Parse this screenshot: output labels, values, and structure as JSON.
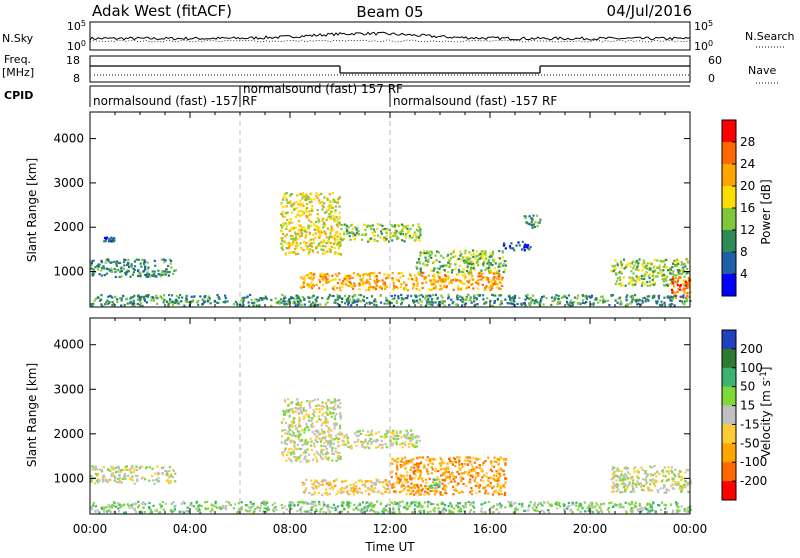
{
  "header": {
    "site": "Adak West (fitACF)",
    "beam": "Beam 05",
    "date": "04/Jul/2016"
  },
  "status_panel": {
    "left_labels": {
      "nsky": "N.Sky",
      "freq": "Freq.",
      "freq_unit": "[MHz]",
      "cpid": "CPID"
    },
    "right_labels": {
      "nsearch": "N.Search",
      "nave": "Nave"
    },
    "noise_ticks": [
      "10^5",
      "10^0"
    ],
    "noise_ticks_right": [
      "10^5",
      "10^0"
    ],
    "freq_ticks": [
      "18",
      "8"
    ],
    "nave_ticks": [
      "60",
      "0"
    ],
    "frequency_steps": [
      {
        "start_hour": 0,
        "end_hour": 10,
        "level": "high"
      },
      {
        "start_hour": 10,
        "end_hour": 18,
        "level": "low"
      },
      {
        "start_hour": 18,
        "end_hour": 24,
        "level": "high"
      }
    ],
    "cpid_segments": [
      {
        "label": "normalsound (fast) -157 RF",
        "start_hour": 0
      },
      {
        "label": "normalsound (fast) 157 RF",
        "start_hour": 6
      },
      {
        "label": "normalsound (fast) -157 RF",
        "start_hour": 12
      }
    ]
  },
  "chart_data": [
    {
      "type": "heatmap",
      "panel": "power",
      "ylabel": "Slant Range [km]",
      "ylim": [
        200,
        4600
      ],
      "yticks": [
        1000,
        2000,
        3000,
        4000
      ],
      "xlim": [
        0,
        24
      ],
      "colorbar": {
        "label": "Power [dB]",
        "ticks": [
          "28",
          "24",
          "20",
          "16",
          "12",
          "8",
          "4"
        ],
        "colors": [
          "#ff0000",
          "#ff6a00",
          "#ffa500",
          "#ffdd00",
          "#7fc83a",
          "#2e8b57",
          "#1f5faa",
          "#0000ff"
        ]
      },
      "echo_regions": [
        {
          "x0": 0.0,
          "x1": 3.4,
          "y0": 900,
          "y1": 1300,
          "level": 2
        },
        {
          "x0": 0.5,
          "x1": 1.0,
          "y0": 1700,
          "y1": 1800,
          "level": 1
        },
        {
          "x0": 7.6,
          "x1": 10.0,
          "y0": 1400,
          "y1": 2800,
          "level": 4
        },
        {
          "x0": 10.0,
          "x1": 13.2,
          "y0": 1700,
          "y1": 2100,
          "level": 3
        },
        {
          "x0": 8.4,
          "x1": 16.5,
          "y0": 600,
          "y1": 1000,
          "level": 5
        },
        {
          "x0": 13.0,
          "x1": 16.6,
          "y0": 1000,
          "y1": 1500,
          "level": 3
        },
        {
          "x0": 16.5,
          "x1": 17.6,
          "y0": 1500,
          "y1": 1700,
          "level": 1
        },
        {
          "x0": 17.3,
          "x1": 18.0,
          "y0": 2000,
          "y1": 2300,
          "level": 2
        },
        {
          "x0": 20.8,
          "x1": 24.0,
          "y0": 700,
          "y1": 1300,
          "level": 3
        },
        {
          "x0": 23.2,
          "x1": 24.0,
          "y0": 400,
          "y1": 900,
          "level": 6
        },
        {
          "x0": 0.0,
          "x1": 24.0,
          "y0": 250,
          "y1": 500,
          "level": 2
        }
      ]
    },
    {
      "type": "heatmap",
      "panel": "velocity",
      "ylabel": "Slant Range [km]",
      "xlabel": "Time UT",
      "ylim": [
        200,
        4600
      ],
      "yticks": [
        1000,
        2000,
        3000,
        4000
      ],
      "xlim": [
        0,
        24
      ],
      "xticks": [
        "00:00",
        "04:00",
        "08:00",
        "12:00",
        "16:00",
        "20:00",
        "00:00"
      ],
      "colorbar": {
        "label": "Velocity [m s^-1]",
        "ticks": [
          "200",
          "100",
          "50",
          "15",
          "-15",
          "-50",
          "-100",
          "-200"
        ],
        "colors": [
          "#2040c0",
          "#2e7a2e",
          "#3cb371",
          "#7fd83a",
          "#c0c0c0",
          "#ffcc33",
          "#ffa500",
          "#ff6a00",
          "#ff0000"
        ]
      },
      "echo_regions": [
        {
          "x0": 0.0,
          "x1": 3.4,
          "y0": 900,
          "y1": 1300,
          "level": 4
        },
        {
          "x0": 7.6,
          "x1": 10.0,
          "y0": 1400,
          "y1": 2800,
          "level": 4
        },
        {
          "x0": 10.0,
          "x1": 13.2,
          "y0": 1700,
          "y1": 2100,
          "level": 4
        },
        {
          "x0": 8.4,
          "x1": 12.0,
          "y0": 650,
          "y1": 1000,
          "level": 5
        },
        {
          "x0": 12.0,
          "x1": 16.6,
          "y0": 650,
          "y1": 1500,
          "level": 6
        },
        {
          "x0": 13.5,
          "x1": 14.0,
          "y0": 800,
          "y1": 1000,
          "level": 3
        },
        {
          "x0": 20.8,
          "x1": 24.0,
          "y0": 700,
          "y1": 1300,
          "level": 4
        },
        {
          "x0": 0.0,
          "x1": 24.0,
          "y0": 250,
          "y1": 500,
          "level": 3
        }
      ]
    }
  ]
}
